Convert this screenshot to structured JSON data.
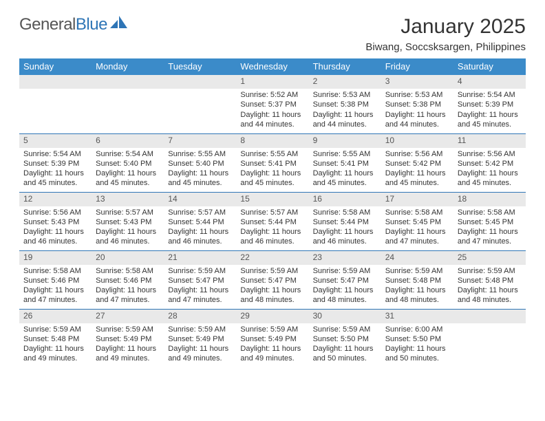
{
  "brand": {
    "part1": "General",
    "part2": "Blue"
  },
  "title": "January 2025",
  "location": "Biwang, Soccsksargen, Philippines",
  "colors": {
    "header_bg": "#3b8bc9",
    "header_text": "#ffffff",
    "daynum_bg": "#e9e9e9",
    "row_divider": "#2e75b6",
    "text": "#333333",
    "brand_blue": "#2e75b6",
    "background": "#ffffff"
  },
  "typography": {
    "title_fontsize": 30,
    "location_fontsize": 15,
    "dayheader_fontsize": 13,
    "daynum_fontsize": 12,
    "body_fontsize": 11
  },
  "day_headers": [
    "Sunday",
    "Monday",
    "Tuesday",
    "Wednesday",
    "Thursday",
    "Friday",
    "Saturday"
  ],
  "weeks": [
    [
      {
        "n": "",
        "sunrise": "",
        "sunset": "",
        "daylight": ""
      },
      {
        "n": "",
        "sunrise": "",
        "sunset": "",
        "daylight": ""
      },
      {
        "n": "",
        "sunrise": "",
        "sunset": "",
        "daylight": ""
      },
      {
        "n": "1",
        "sunrise": "Sunrise: 5:52 AM",
        "sunset": "Sunset: 5:37 PM",
        "daylight": "Daylight: 11 hours and 44 minutes."
      },
      {
        "n": "2",
        "sunrise": "Sunrise: 5:53 AM",
        "sunset": "Sunset: 5:38 PM",
        "daylight": "Daylight: 11 hours and 44 minutes."
      },
      {
        "n": "3",
        "sunrise": "Sunrise: 5:53 AM",
        "sunset": "Sunset: 5:38 PM",
        "daylight": "Daylight: 11 hours and 44 minutes."
      },
      {
        "n": "4",
        "sunrise": "Sunrise: 5:54 AM",
        "sunset": "Sunset: 5:39 PM",
        "daylight": "Daylight: 11 hours and 45 minutes."
      }
    ],
    [
      {
        "n": "5",
        "sunrise": "Sunrise: 5:54 AM",
        "sunset": "Sunset: 5:39 PM",
        "daylight": "Daylight: 11 hours and 45 minutes."
      },
      {
        "n": "6",
        "sunrise": "Sunrise: 5:54 AM",
        "sunset": "Sunset: 5:40 PM",
        "daylight": "Daylight: 11 hours and 45 minutes."
      },
      {
        "n": "7",
        "sunrise": "Sunrise: 5:55 AM",
        "sunset": "Sunset: 5:40 PM",
        "daylight": "Daylight: 11 hours and 45 minutes."
      },
      {
        "n": "8",
        "sunrise": "Sunrise: 5:55 AM",
        "sunset": "Sunset: 5:41 PM",
        "daylight": "Daylight: 11 hours and 45 minutes."
      },
      {
        "n": "9",
        "sunrise": "Sunrise: 5:55 AM",
        "sunset": "Sunset: 5:41 PM",
        "daylight": "Daylight: 11 hours and 45 minutes."
      },
      {
        "n": "10",
        "sunrise": "Sunrise: 5:56 AM",
        "sunset": "Sunset: 5:42 PM",
        "daylight": "Daylight: 11 hours and 45 minutes."
      },
      {
        "n": "11",
        "sunrise": "Sunrise: 5:56 AM",
        "sunset": "Sunset: 5:42 PM",
        "daylight": "Daylight: 11 hours and 45 minutes."
      }
    ],
    [
      {
        "n": "12",
        "sunrise": "Sunrise: 5:56 AM",
        "sunset": "Sunset: 5:43 PM",
        "daylight": "Daylight: 11 hours and 46 minutes."
      },
      {
        "n": "13",
        "sunrise": "Sunrise: 5:57 AM",
        "sunset": "Sunset: 5:43 PM",
        "daylight": "Daylight: 11 hours and 46 minutes."
      },
      {
        "n": "14",
        "sunrise": "Sunrise: 5:57 AM",
        "sunset": "Sunset: 5:44 PM",
        "daylight": "Daylight: 11 hours and 46 minutes."
      },
      {
        "n": "15",
        "sunrise": "Sunrise: 5:57 AM",
        "sunset": "Sunset: 5:44 PM",
        "daylight": "Daylight: 11 hours and 46 minutes."
      },
      {
        "n": "16",
        "sunrise": "Sunrise: 5:58 AM",
        "sunset": "Sunset: 5:44 PM",
        "daylight": "Daylight: 11 hours and 46 minutes."
      },
      {
        "n": "17",
        "sunrise": "Sunrise: 5:58 AM",
        "sunset": "Sunset: 5:45 PM",
        "daylight": "Daylight: 11 hours and 47 minutes."
      },
      {
        "n": "18",
        "sunrise": "Sunrise: 5:58 AM",
        "sunset": "Sunset: 5:45 PM",
        "daylight": "Daylight: 11 hours and 47 minutes."
      }
    ],
    [
      {
        "n": "19",
        "sunrise": "Sunrise: 5:58 AM",
        "sunset": "Sunset: 5:46 PM",
        "daylight": "Daylight: 11 hours and 47 minutes."
      },
      {
        "n": "20",
        "sunrise": "Sunrise: 5:58 AM",
        "sunset": "Sunset: 5:46 PM",
        "daylight": "Daylight: 11 hours and 47 minutes."
      },
      {
        "n": "21",
        "sunrise": "Sunrise: 5:59 AM",
        "sunset": "Sunset: 5:47 PM",
        "daylight": "Daylight: 11 hours and 47 minutes."
      },
      {
        "n": "22",
        "sunrise": "Sunrise: 5:59 AM",
        "sunset": "Sunset: 5:47 PM",
        "daylight": "Daylight: 11 hours and 48 minutes."
      },
      {
        "n": "23",
        "sunrise": "Sunrise: 5:59 AM",
        "sunset": "Sunset: 5:47 PM",
        "daylight": "Daylight: 11 hours and 48 minutes."
      },
      {
        "n": "24",
        "sunrise": "Sunrise: 5:59 AM",
        "sunset": "Sunset: 5:48 PM",
        "daylight": "Daylight: 11 hours and 48 minutes."
      },
      {
        "n": "25",
        "sunrise": "Sunrise: 5:59 AM",
        "sunset": "Sunset: 5:48 PM",
        "daylight": "Daylight: 11 hours and 48 minutes."
      }
    ],
    [
      {
        "n": "26",
        "sunrise": "Sunrise: 5:59 AM",
        "sunset": "Sunset: 5:48 PM",
        "daylight": "Daylight: 11 hours and 49 minutes."
      },
      {
        "n": "27",
        "sunrise": "Sunrise: 5:59 AM",
        "sunset": "Sunset: 5:49 PM",
        "daylight": "Daylight: 11 hours and 49 minutes."
      },
      {
        "n": "28",
        "sunrise": "Sunrise: 5:59 AM",
        "sunset": "Sunset: 5:49 PM",
        "daylight": "Daylight: 11 hours and 49 minutes."
      },
      {
        "n": "29",
        "sunrise": "Sunrise: 5:59 AM",
        "sunset": "Sunset: 5:49 PM",
        "daylight": "Daylight: 11 hours and 49 minutes."
      },
      {
        "n": "30",
        "sunrise": "Sunrise: 5:59 AM",
        "sunset": "Sunset: 5:50 PM",
        "daylight": "Daylight: 11 hours and 50 minutes."
      },
      {
        "n": "31",
        "sunrise": "Sunrise: 6:00 AM",
        "sunset": "Sunset: 5:50 PM",
        "daylight": "Daylight: 11 hours and 50 minutes."
      },
      {
        "n": "",
        "sunrise": "",
        "sunset": "",
        "daylight": ""
      }
    ]
  ]
}
